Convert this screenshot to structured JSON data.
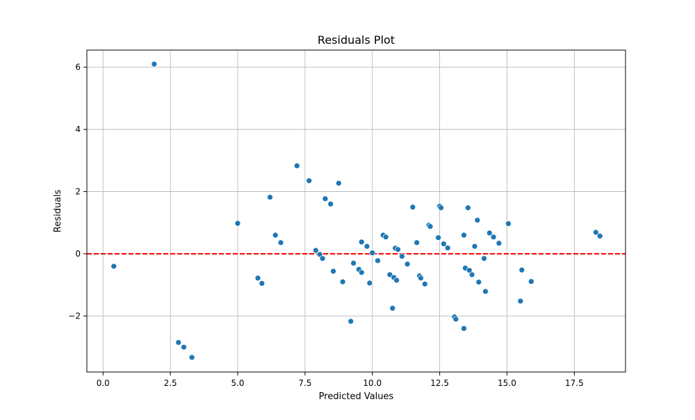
{
  "chart_data": {
    "type": "scatter",
    "title": "Residuals Plot",
    "xlabel": "Predicted Values",
    "ylabel": "Residuals",
    "xlim": [
      -0.6,
      19.4
    ],
    "ylim": [
      -3.8,
      6.55
    ],
    "xticks": [
      0.0,
      2.5,
      5.0,
      7.5,
      10.0,
      12.5,
      15.0,
      17.5
    ],
    "xtick_labels": [
      "0.0",
      "2.5",
      "5.0",
      "7.5",
      "10.0",
      "12.5",
      "15.0",
      "17.5"
    ],
    "yticks": [
      -2,
      0,
      2,
      4,
      6
    ],
    "ytick_labels": [
      "−2",
      "0",
      "2",
      "4",
      "6"
    ],
    "grid": true,
    "reference_line": {
      "y": 0,
      "style": "dashed",
      "color": "#ff0000"
    },
    "marker_color": "#1f77b4",
    "points": [
      {
        "x": 0.4,
        "y": -0.4
      },
      {
        "x": 1.9,
        "y": 6.1
      },
      {
        "x": 2.8,
        "y": -2.85
      },
      {
        "x": 3.0,
        "y": -3.0
      },
      {
        "x": 3.3,
        "y": -3.33
      },
      {
        "x": 5.0,
        "y": 0.98
      },
      {
        "x": 5.75,
        "y": -0.78
      },
      {
        "x": 5.9,
        "y": -0.95
      },
      {
        "x": 6.2,
        "y": 1.82
      },
      {
        "x": 6.4,
        "y": 0.6
      },
      {
        "x": 6.6,
        "y": 0.36
      },
      {
        "x": 7.2,
        "y": 2.83
      },
      {
        "x": 7.65,
        "y": 2.35
      },
      {
        "x": 7.9,
        "y": 0.11
      },
      {
        "x": 8.05,
        "y": -0.02
      },
      {
        "x": 8.15,
        "y": -0.15
      },
      {
        "x": 8.25,
        "y": 1.77
      },
      {
        "x": 8.45,
        "y": 1.6
      },
      {
        "x": 8.55,
        "y": -0.56
      },
      {
        "x": 8.75,
        "y": 2.27
      },
      {
        "x": 8.9,
        "y": -0.9
      },
      {
        "x": 9.2,
        "y": -2.17
      },
      {
        "x": 9.3,
        "y": -0.3
      },
      {
        "x": 9.5,
        "y": -0.5
      },
      {
        "x": 9.6,
        "y": -0.6
      },
      {
        "x": 9.6,
        "y": 0.38
      },
      {
        "x": 9.8,
        "y": 0.24
      },
      {
        "x": 9.9,
        "y": -0.94
      },
      {
        "x": 10.0,
        "y": 0.03
      },
      {
        "x": 10.2,
        "y": -0.22
      },
      {
        "x": 10.4,
        "y": 0.6
      },
      {
        "x": 10.5,
        "y": 0.54
      },
      {
        "x": 10.65,
        "y": -0.67
      },
      {
        "x": 10.75,
        "y": -1.75
      },
      {
        "x": 10.8,
        "y": -0.76
      },
      {
        "x": 10.85,
        "y": 0.18
      },
      {
        "x": 10.9,
        "y": -0.85
      },
      {
        "x": 10.95,
        "y": 0.14
      },
      {
        "x": 11.1,
        "y": -0.08
      },
      {
        "x": 11.3,
        "y": -0.33
      },
      {
        "x": 11.5,
        "y": 1.5
      },
      {
        "x": 11.65,
        "y": 0.36
      },
      {
        "x": 11.75,
        "y": -0.71
      },
      {
        "x": 11.8,
        "y": -0.78
      },
      {
        "x": 11.95,
        "y": -0.97
      },
      {
        "x": 12.1,
        "y": 0.92
      },
      {
        "x": 12.15,
        "y": 0.88
      },
      {
        "x": 12.45,
        "y": 0.52
      },
      {
        "x": 12.5,
        "y": 1.53
      },
      {
        "x": 12.55,
        "y": 1.48
      },
      {
        "x": 12.65,
        "y": 0.32
      },
      {
        "x": 12.8,
        "y": 0.19
      },
      {
        "x": 13.05,
        "y": -2.03
      },
      {
        "x": 13.1,
        "y": -2.1
      },
      {
        "x": 13.4,
        "y": 0.6
      },
      {
        "x": 13.4,
        "y": -2.4
      },
      {
        "x": 13.45,
        "y": -0.46
      },
      {
        "x": 13.55,
        "y": 1.48
      },
      {
        "x": 13.6,
        "y": -0.53
      },
      {
        "x": 13.7,
        "y": -0.67
      },
      {
        "x": 13.8,
        "y": 0.24
      },
      {
        "x": 13.9,
        "y": 1.08
      },
      {
        "x": 13.95,
        "y": -0.91
      },
      {
        "x": 14.15,
        "y": -0.15
      },
      {
        "x": 14.2,
        "y": -1.21
      },
      {
        "x": 14.35,
        "y": 0.67
      },
      {
        "x": 14.5,
        "y": 0.54
      },
      {
        "x": 14.7,
        "y": 0.34
      },
      {
        "x": 15.05,
        "y": 0.97
      },
      {
        "x": 15.5,
        "y": -1.52
      },
      {
        "x": 15.55,
        "y": -0.52
      },
      {
        "x": 15.9,
        "y": -0.89
      },
      {
        "x": 18.3,
        "y": 0.69
      },
      {
        "x": 18.45,
        "y": 0.57
      }
    ]
  }
}
